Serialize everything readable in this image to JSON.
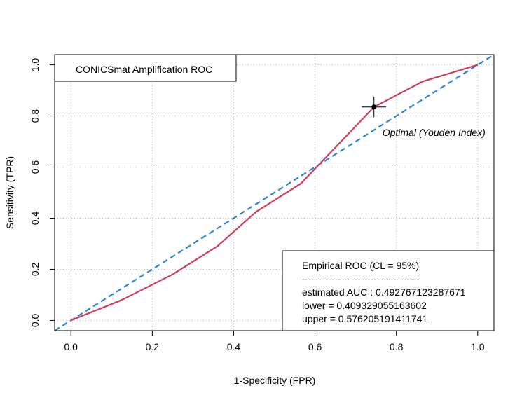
{
  "chart_data": {
    "type": "line",
    "title": "",
    "xlabel": "1-Specificity (FPR)",
    "ylabel": "Sensitivity (TPR)",
    "xlim": [
      -0.04,
      1.04
    ],
    "ylim": [
      -0.04,
      1.04
    ],
    "x_ticks": [
      "0.0",
      "0.2",
      "0.4",
      "0.6",
      "0.8",
      "1.0"
    ],
    "y_ticks": [
      "0.0",
      "0.2",
      "0.4",
      "0.6",
      "0.8",
      "1.0"
    ],
    "grid": true,
    "series": [
      {
        "name": "",
        "color": "#d03c5a",
        "points": [
          [
            0.0,
            0.0
          ],
          [
            0.125,
            0.08
          ],
          [
            0.25,
            0.18
          ],
          [
            0.36,
            0.29
          ],
          [
            0.455,
            0.425
          ],
          [
            0.565,
            0.535
          ],
          [
            0.745,
            0.835
          ],
          [
            0.865,
            0.935
          ],
          [
            1.0,
            1.0
          ]
        ]
      }
    ],
    "reference_line": {
      "color": "#2a86d6",
      "points": [
        [
          -0.04,
          -0.04
        ],
        [
          1.04,
          1.04
        ]
      ]
    },
    "optimal_point": {
      "x": 0.745,
      "y": 0.835,
      "ci_x": [
        0.715,
        0.775
      ],
      "ci_y": [
        0.795,
        0.875
      ]
    },
    "optimal_label": "Optimal (Youden Index)",
    "legend_title": "CONICSmat Amplification ROC",
    "legend_title_position": "top-left",
    "stats_box_position": "bottom-right",
    "stats_lines": [
      "Empirical ROC (CL = 95%)",
      "------------------------------------",
      "estimated AUC : 0.492767123287671",
      "lower = 0.409329055163602",
      "upper = 0.576205191411741"
    ]
  }
}
